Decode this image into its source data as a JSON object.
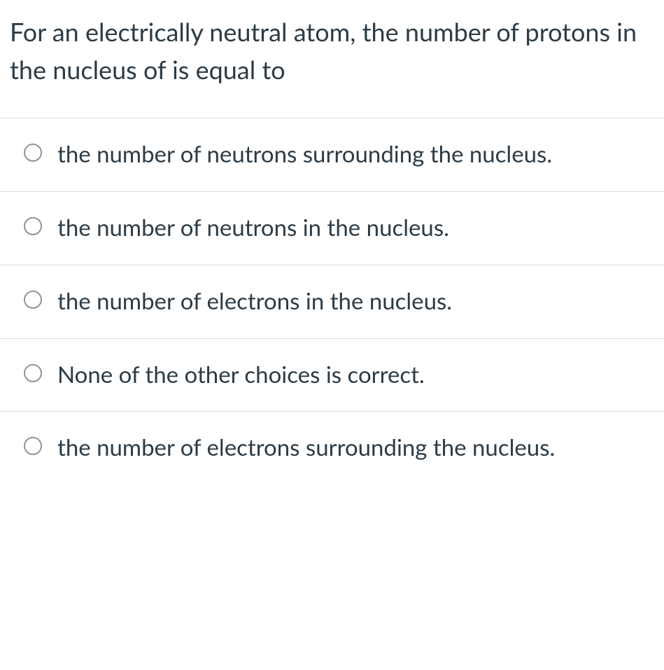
{
  "question": {
    "text": "For an electrically neutral atom, the number of protons in the nucleus of  is equal to"
  },
  "options": [
    {
      "label": "the number of neutrons surrounding the nucleus."
    },
    {
      "label": "the number of neutrons in the nucleus."
    },
    {
      "label": "the number of electrons in the nucleus."
    },
    {
      "label": "None of the other choices is correct."
    },
    {
      "label": "the number of electrons surrounding the nucleus."
    }
  ],
  "colors": {
    "text": "#2d3b45",
    "border": "#d9dde1",
    "radio_border": "#8c959e",
    "background": "#ffffff"
  }
}
